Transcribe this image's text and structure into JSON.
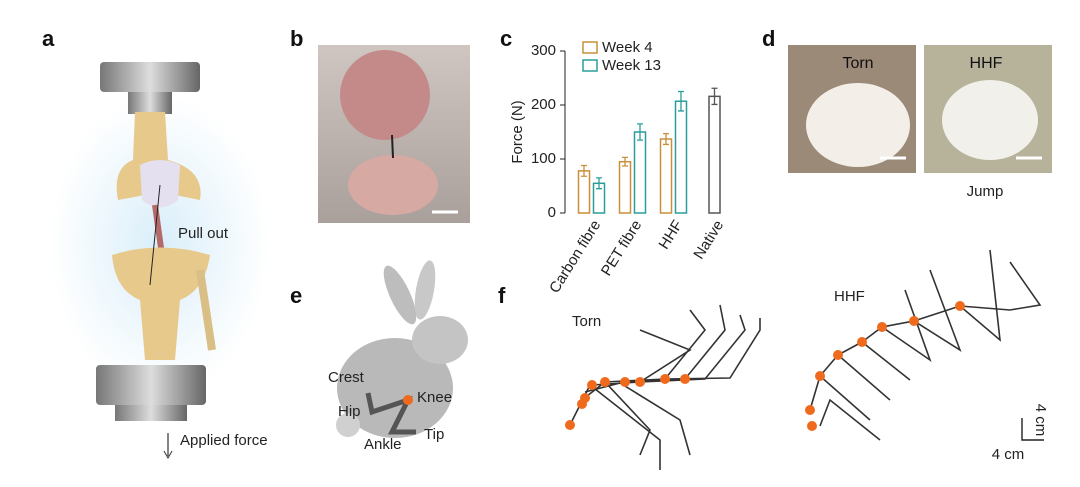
{
  "panels": {
    "a": {
      "label": "a",
      "pull_out": "Pull out",
      "applied_force": "Applied force"
    },
    "b": {
      "label": "b"
    },
    "c": {
      "label": "c"
    },
    "d": {
      "label": "d",
      "left": "Torn",
      "right": "HHF",
      "caption": "Jump"
    },
    "e": {
      "label": "e",
      "crest": "Crest",
      "hip": "Hip",
      "knee": "Knee",
      "ankle": "Ankle",
      "tip": "Tip"
    },
    "f": {
      "label": "f",
      "left": "Torn",
      "right": "HHF",
      "scale_y": "4 cm",
      "scale_x": "4 cm"
    }
  },
  "chart_data": {
    "type": "bar",
    "ylabel": "Force (N)",
    "categories": [
      "Carbon fibre",
      "PET fibre",
      "HHF",
      "Native"
    ],
    "series": [
      {
        "name": "Week 4",
        "color": "#c8903a",
        "values": [
          78,
          95,
          137,
          null
        ],
        "errors": [
          10,
          8,
          10,
          null
        ]
      },
      {
        "name": "Week 13",
        "color": "#2a9d9a",
        "values": [
          55,
          150,
          207,
          null
        ],
        "errors": [
          10,
          15,
          18,
          null
        ]
      },
      {
        "color": "#555555",
        "values": [
          null,
          null,
          null,
          216
        ],
        "errors": [
          null,
          null,
          null,
          15
        ]
      }
    ],
    "ylim": [
      0,
      300
    ],
    "yticks": [
      0,
      100,
      200,
      300
    ]
  }
}
